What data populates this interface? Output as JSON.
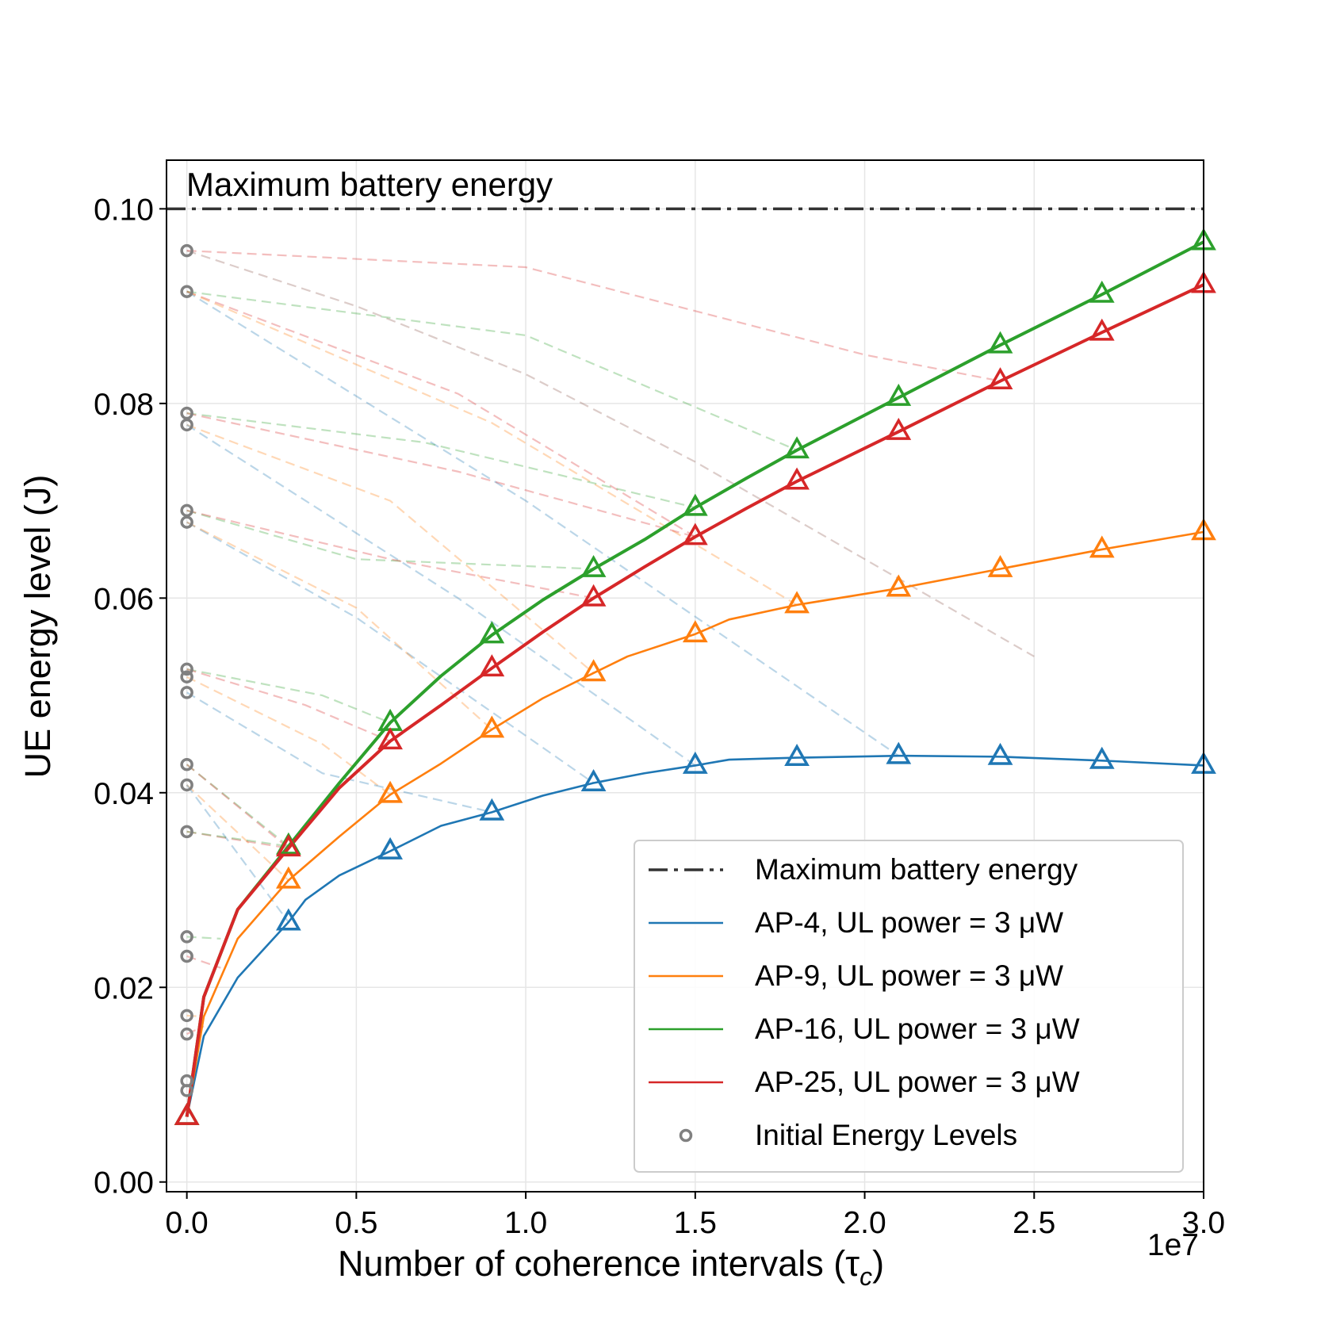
{
  "chart_data": {
    "type": "line",
    "title": "",
    "xlabel": "Number of coherence intervals (τ",
    "xlabel_sub": "c",
    "xlabel_close": ")",
    "ylabel": "UE energy level (J)",
    "x_multiplier_label": "1e7",
    "xlim": [
      -0.06,
      3.0
    ],
    "ylim": [
      -0.001,
      0.105
    ],
    "x_ticks": [
      0.0,
      0.5,
      1.0,
      1.5,
      2.0,
      2.5,
      3.0
    ],
    "x_tick_labels": [
      "0.0",
      "0.5",
      "1.0",
      "1.5",
      "2.0",
      "2.5",
      "3.0"
    ],
    "y_ticks": [
      0.0,
      0.02,
      0.04,
      0.06,
      0.08,
      0.1
    ],
    "y_tick_labels": [
      "0.00",
      "0.02",
      "0.04",
      "0.06",
      "0.08",
      "0.10"
    ],
    "grid": true,
    "legend_position": "lower-right",
    "max_battery": {
      "value": 0.1,
      "label": "Maximum battery energy",
      "annotation": "Maximum battery energy",
      "color": "#333333"
    },
    "series": [
      {
        "name": "AP-4, UL power = 3 μW",
        "color": "#1f77b4",
        "x": [
          0,
          0.05,
          0.15,
          0.3,
          0.35,
          0.45,
          0.6,
          0.75,
          0.9,
          1.05,
          1.2,
          1.35,
          1.5,
          1.6,
          1.8,
          2.1,
          2.4,
          2.7,
          3.0
        ],
        "y": [
          0.0067,
          0.015,
          0.021,
          0.0267,
          0.029,
          0.0315,
          0.034,
          0.0366,
          0.038,
          0.0397,
          0.041,
          0.042,
          0.0428,
          0.0434,
          0.0436,
          0.0438,
          0.0437,
          0.0433,
          0.0428
        ],
        "markers_x": [
          0.0,
          0.3,
          0.6,
          0.9,
          1.2,
          1.5,
          1.8,
          2.1,
          2.4,
          2.7,
          3.0
        ],
        "markers_y": [
          0.0067,
          0.0267,
          0.034,
          0.038,
          0.041,
          0.0428,
          0.0436,
          0.0438,
          0.0437,
          0.0433,
          0.0428
        ]
      },
      {
        "name": "AP-9, UL power = 3 μW",
        "color": "#ff7f0e",
        "x": [
          0,
          0.05,
          0.15,
          0.3,
          0.45,
          0.6,
          0.75,
          0.9,
          1.05,
          1.2,
          1.3,
          1.5,
          1.6,
          1.8,
          2.1,
          2.4,
          2.7,
          3.0
        ],
        "y": [
          0.0067,
          0.017,
          0.025,
          0.031,
          0.0355,
          0.0398,
          0.043,
          0.0465,
          0.0497,
          0.0523,
          0.054,
          0.0563,
          0.0578,
          0.0593,
          0.061,
          0.063,
          0.065,
          0.0668
        ],
        "markers_x": [
          0.0,
          0.3,
          0.6,
          0.9,
          1.2,
          1.5,
          1.8,
          2.1,
          2.4,
          2.7,
          3.0
        ],
        "markers_y": [
          0.0067,
          0.031,
          0.0398,
          0.0465,
          0.0523,
          0.0563,
          0.0593,
          0.061,
          0.063,
          0.065,
          0.0668
        ]
      },
      {
        "name": "AP-16, UL power = 3 μW",
        "color": "#2ca02c",
        "x": [
          0,
          0.05,
          0.15,
          0.3,
          0.45,
          0.6,
          0.75,
          0.9,
          1.05,
          1.2,
          1.35,
          1.5,
          1.65,
          1.8,
          2.1,
          2.4,
          2.7,
          3.0
        ],
        "y": [
          0.0067,
          0.019,
          0.028,
          0.0345,
          0.041,
          0.0472,
          0.052,
          0.0562,
          0.0598,
          0.063,
          0.066,
          0.0693,
          0.0723,
          0.0752,
          0.0806,
          0.086,
          0.0912,
          0.0966
        ],
        "markers_x": [
          0.0,
          0.3,
          0.6,
          0.9,
          1.2,
          1.5,
          1.8,
          2.1,
          2.4,
          2.7,
          3.0
        ],
        "markers_y": [
          0.0067,
          0.0345,
          0.0472,
          0.0562,
          0.063,
          0.0693,
          0.0752,
          0.0806,
          0.086,
          0.0912,
          0.0966
        ]
      },
      {
        "name": "AP-25, UL power = 3 μW",
        "color": "#d62728",
        "x": [
          0,
          0.05,
          0.15,
          0.3,
          0.45,
          0.6,
          0.75,
          0.9,
          1.05,
          1.2,
          1.35,
          1.5,
          1.65,
          1.8,
          2.1,
          2.4,
          2.7,
          3.0
        ],
        "y": [
          0.0067,
          0.019,
          0.028,
          0.0343,
          0.0405,
          0.0453,
          0.049,
          0.0528,
          0.0565,
          0.06,
          0.0632,
          0.0663,
          0.0692,
          0.072,
          0.0771,
          0.0823,
          0.0873,
          0.0922
        ],
        "markers_x": [
          0.0,
          0.3,
          0.6,
          0.9,
          1.2,
          1.5,
          1.8,
          2.1,
          2.4,
          2.7,
          3.0
        ],
        "markers_y": [
          0.0067,
          0.0343,
          0.0453,
          0.0528,
          0.06,
          0.0663,
          0.072,
          0.0771,
          0.0823,
          0.0873,
          0.0922
        ]
      }
    ],
    "initial_levels": {
      "name": "Initial Energy Levels",
      "color": "#808080",
      "x": 0.0,
      "y": [
        0.0957,
        0.0915,
        0.079,
        0.0778,
        0.069,
        0.0678,
        0.0527,
        0.0519,
        0.0503,
        0.0429,
        0.0408,
        0.036,
        0.0252,
        0.0232,
        0.0171,
        0.0152,
        0.0104,
        0.0094
      ]
    },
    "initial_trajectories": [
      {
        "color": "#d62728",
        "points": [
          [
            0,
            0.0957
          ],
          [
            1.0,
            0.094
          ],
          [
            2.0,
            0.085
          ],
          [
            2.4,
            0.0823
          ]
        ]
      },
      {
        "color": "#8c564b",
        "points": [
          [
            0,
            0.0957
          ],
          [
            0.5,
            0.09
          ],
          [
            1.0,
            0.083
          ],
          [
            1.5,
            0.074
          ],
          [
            2.0,
            0.064
          ],
          [
            2.5,
            0.054
          ]
        ]
      },
      {
        "color": "#2ca02c",
        "points": [
          [
            0,
            0.0915
          ],
          [
            1.0,
            0.087
          ],
          [
            1.8,
            0.0752
          ]
        ]
      },
      {
        "color": "#d62728",
        "points": [
          [
            0,
            0.0915
          ],
          [
            0.8,
            0.081
          ],
          [
            1.5,
            0.0663
          ]
        ]
      },
      {
        "color": "#1f77b4",
        "points": [
          [
            0,
            0.0915
          ],
          [
            1.0,
            0.07
          ],
          [
            2.1,
            0.0438
          ]
        ]
      },
      {
        "color": "#ff7f0e",
        "points": [
          [
            0,
            0.0915
          ],
          [
            0.9,
            0.078
          ],
          [
            1.8,
            0.0593
          ]
        ]
      },
      {
        "color": "#2ca02c",
        "points": [
          [
            0,
            0.079
          ],
          [
            0.7,
            0.076
          ],
          [
            1.5,
            0.0693
          ]
        ]
      },
      {
        "color": "#d62728",
        "points": [
          [
            0,
            0.079
          ],
          [
            0.8,
            0.073
          ],
          [
            1.5,
            0.0663
          ]
        ]
      },
      {
        "color": "#ff7f0e",
        "points": [
          [
            0,
            0.0778
          ],
          [
            0.6,
            0.07
          ],
          [
            1.2,
            0.0523
          ]
        ]
      },
      {
        "color": "#1f77b4",
        "points": [
          [
            0,
            0.0778
          ],
          [
            0.8,
            0.06
          ],
          [
            1.5,
            0.0428
          ]
        ]
      },
      {
        "color": "#2ca02c",
        "points": [
          [
            0,
            0.069
          ],
          [
            0.5,
            0.064
          ],
          [
            1.2,
            0.063
          ]
        ]
      },
      {
        "color": "#d62728",
        "points": [
          [
            0,
            0.069
          ],
          [
            0.6,
            0.064
          ],
          [
            1.2,
            0.06
          ]
        ]
      },
      {
        "color": "#1f77b4",
        "points": [
          [
            0,
            0.0678
          ],
          [
            0.5,
            0.058
          ],
          [
            1.2,
            0.041
          ]
        ]
      },
      {
        "color": "#ff7f0e",
        "points": [
          [
            0,
            0.0678
          ],
          [
            0.5,
            0.059
          ],
          [
            0.9,
            0.0465
          ]
        ]
      },
      {
        "color": "#2ca02c",
        "points": [
          [
            0,
            0.0527
          ],
          [
            0.4,
            0.05
          ],
          [
            0.6,
            0.0472
          ]
        ]
      },
      {
        "color": "#d62728",
        "points": [
          [
            0,
            0.0527
          ],
          [
            0.35,
            0.049
          ],
          [
            0.6,
            0.0453
          ]
        ]
      },
      {
        "color": "#ff7f0e",
        "points": [
          [
            0,
            0.0519
          ],
          [
            0.4,
            0.045
          ],
          [
            0.6,
            0.0398
          ]
        ]
      },
      {
        "color": "#1f77b4",
        "points": [
          [
            0,
            0.0503
          ],
          [
            0.4,
            0.042
          ],
          [
            0.9,
            0.038
          ]
        ]
      },
      {
        "color": "#2ca02c",
        "points": [
          [
            0,
            0.0429
          ],
          [
            0.3,
            0.0345
          ]
        ]
      },
      {
        "color": "#d62728",
        "points": [
          [
            0,
            0.0429
          ],
          [
            0.3,
            0.0343
          ]
        ]
      },
      {
        "color": "#ff7f0e",
        "points": [
          [
            0,
            0.0408
          ],
          [
            0.3,
            0.031
          ]
        ]
      },
      {
        "color": "#1f77b4",
        "points": [
          [
            0,
            0.0408
          ],
          [
            0.3,
            0.0267
          ]
        ]
      },
      {
        "color": "#d62728",
        "points": [
          [
            0,
            0.036
          ],
          [
            0.3,
            0.0343
          ]
        ]
      },
      {
        "color": "#2ca02c",
        "points": [
          [
            0,
            0.036
          ],
          [
            0.3,
            0.0345
          ]
        ]
      },
      {
        "color": "#2ca02c",
        "points": [
          [
            0,
            0.0252
          ],
          [
            0.1,
            0.025
          ]
        ]
      },
      {
        "color": "#d62728",
        "points": [
          [
            0,
            0.0232
          ],
          [
            0.1,
            0.022
          ]
        ]
      },
      {
        "color": "#ff7f0e",
        "points": [
          [
            0,
            0.0171
          ],
          [
            0.05,
            0.017
          ]
        ]
      },
      {
        "color": "#d62728",
        "points": [
          [
            0,
            0.0152
          ],
          [
            0.05,
            0.016
          ]
        ]
      }
    ]
  }
}
